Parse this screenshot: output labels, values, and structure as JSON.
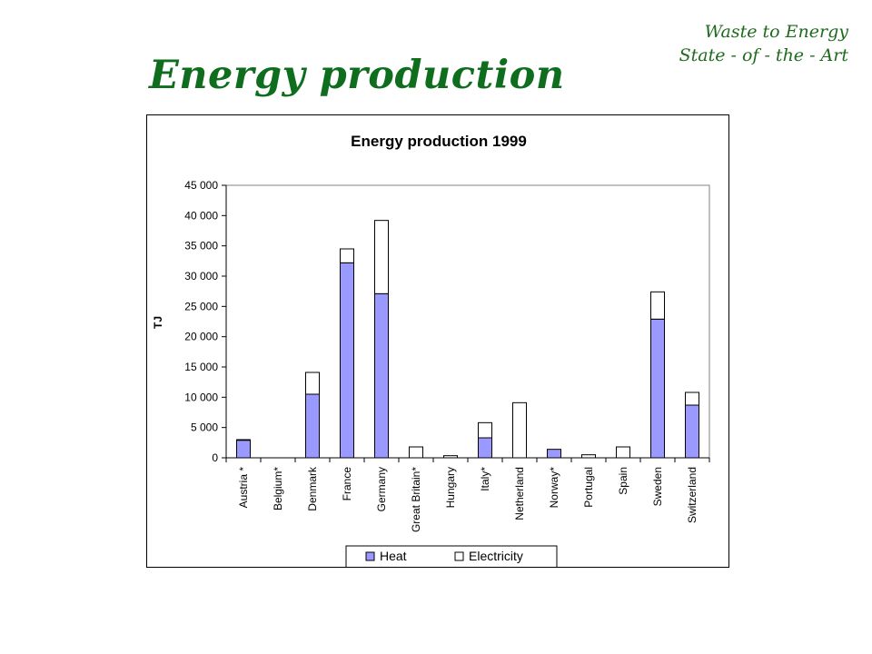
{
  "header": {
    "line1": "Waste to Energy",
    "line2": "State - of - the - Art"
  },
  "slide_title": "Energy production",
  "chart_data": {
    "type": "bar",
    "stacked": true,
    "title": "Energy production 1999",
    "xlabel": "",
    "ylabel": "TJ",
    "ylim": [
      0,
      45000
    ],
    "yticks": [
      0,
      5000,
      10000,
      15000,
      20000,
      25000,
      30000,
      35000,
      40000,
      45000
    ],
    "ytick_labels": [
      "0",
      "5 000",
      "10 000",
      "15 000",
      "20 000",
      "25 000",
      "30 000",
      "35 000",
      "40 000",
      "45 000"
    ],
    "grid": false,
    "legend_position": "bottom",
    "categories": [
      "Austria *",
      "Belgium*",
      "Denmark",
      "France",
      "Germany",
      "Great Britain*",
      "Hungary",
      "Italy*",
      "Netherland",
      "Norway*",
      "Portugal",
      "Spain",
      "Sweden",
      "Switzerland"
    ],
    "series": [
      {
        "name": "Heat",
        "color": "#9999ff",
        "values": [
          2900,
          0,
          10500,
          32200,
          27100,
          0,
          0,
          3300,
          0,
          1400,
          0,
          0,
          22900,
          8700
        ]
      },
      {
        "name": "Electricity",
        "color": "#ffffff",
        "values": [
          100,
          0,
          3600,
          2300,
          12100,
          1800,
          350,
          2500,
          9100,
          0,
          500,
          1800,
          4500,
          2100
        ]
      }
    ]
  }
}
